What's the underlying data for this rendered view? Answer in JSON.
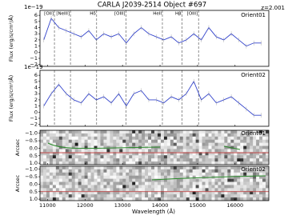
{
  "figure": {
    "title": "CARLA J2039-2514 Object #697",
    "annotation": "z=2.001",
    "xlabel": "Wavelength (Å)",
    "xlim": [
      10800,
      16900
    ],
    "xticks": [
      11000,
      12000,
      13000,
      14000,
      15000,
      16000
    ],
    "emission_lines": [
      {
        "label": "[OII]",
        "wavelength": 11185
      },
      {
        "label": "[NeIII]",
        "wavelength": 11612
      },
      {
        "label": "Hδ",
        "wavelength": 12310
      },
      {
        "label": "[OIII]",
        "wavelength": 13093
      },
      {
        "label": "HeII",
        "wavelength": 14063
      },
      {
        "label": "Hβ",
        "wavelength": 14588
      },
      {
        "label": "[OIII]",
        "wavelength": 15027
      }
    ]
  },
  "chart_data": [
    {
      "type": "line",
      "ylabel": "Flux (erg/s/cm²/Å)",
      "multiplier": "1e−19",
      "ylim": [
        -2.3,
        6.8
      ],
      "yticks": [
        {
          "value": -2,
          "label": "−2"
        },
        {
          "value": -1,
          "label": "−1"
        },
        0,
        1,
        2,
        3,
        4,
        5,
        6
      ],
      "x": [
        10900,
        11100,
        11300,
        11500,
        11700,
        11900,
        12100,
        12300,
        12500,
        12700,
        12900,
        13100,
        13300,
        13500,
        13700,
        13900,
        14100,
        14300,
        14500,
        14700,
        14900,
        15100,
        15300,
        15500,
        15700,
        15900,
        16100,
        16300,
        16500,
        16700
      ],
      "series": [
        {
          "name": "Orient01",
          "color": "#3344cc",
          "values": [
            2,
            5.5,
            4,
            3.5,
            3,
            2.5,
            3.5,
            2,
            3,
            2.5,
            3,
            1.5,
            3,
            4,
            3,
            2.5,
            2,
            2.5,
            1.5,
            2,
            3,
            2,
            4,
            2.5,
            2,
            3,
            2,
            1,
            1.5,
            1.5
          ]
        }
      ]
    },
    {
      "type": "line",
      "ylabel": "Flux (erg/s/cm²/Å)",
      "multiplier": "1e−19",
      "ylim": [
        -2.3,
        6.8
      ],
      "yticks": [
        {
          "value": -2,
          "label": "−2"
        },
        {
          "value": -1,
          "label": "−1"
        },
        0,
        1,
        2,
        3,
        4,
        5,
        6
      ],
      "x": [
        10900,
        11100,
        11300,
        11500,
        11700,
        11900,
        12100,
        12300,
        12500,
        12700,
        12900,
        13100,
        13300,
        13500,
        13700,
        13900,
        14100,
        14300,
        14500,
        14700,
        14900,
        15100,
        15300,
        15500,
        15700,
        15900,
        16100,
        16300,
        16500,
        16700
      ],
      "series": [
        {
          "name": "Orient02",
          "color": "#3344cc",
          "values": [
            1,
            3,
            4.5,
            3,
            2,
            1.5,
            3,
            2,
            2.5,
            1.5,
            3,
            1,
            3,
            3.5,
            2,
            2,
            1.5,
            2.5,
            2,
            3,
            5,
            2,
            3,
            1.5,
            2,
            2.5,
            1.5,
            0.5,
            -0.5,
            -0.5
          ]
        }
      ]
    },
    {
      "type": "image",
      "legend": "Orient01",
      "ylabel": "Arcsec",
      "ylim": [
        1.1,
        -1.2
      ],
      "hline": 0.3,
      "hline_color": "#c03030",
      "yticks": [
        {
          "value": -1,
          "label": "−1.0"
        },
        {
          "value": -0.5,
          "label": "−0.5"
        },
        {
          "value": 0,
          "label": "0.0"
        },
        0.5,
        {
          "value": 1,
          "label": "1.0"
        }
      ]
    },
    {
      "type": "image",
      "legend": "Orient02",
      "ylabel": "Arcsec",
      "ylim": [
        1.1,
        -1.2
      ],
      "hline": 0.5,
      "hline_color": "#c03030",
      "yticks": [
        {
          "value": -1,
          "label": "−1.0"
        },
        {
          "value": -0.5,
          "label": "−0.5"
        },
        {
          "value": 0,
          "label": "0.0"
        },
        0.5,
        {
          "value": 1,
          "label": "1.0"
        }
      ]
    }
  ]
}
